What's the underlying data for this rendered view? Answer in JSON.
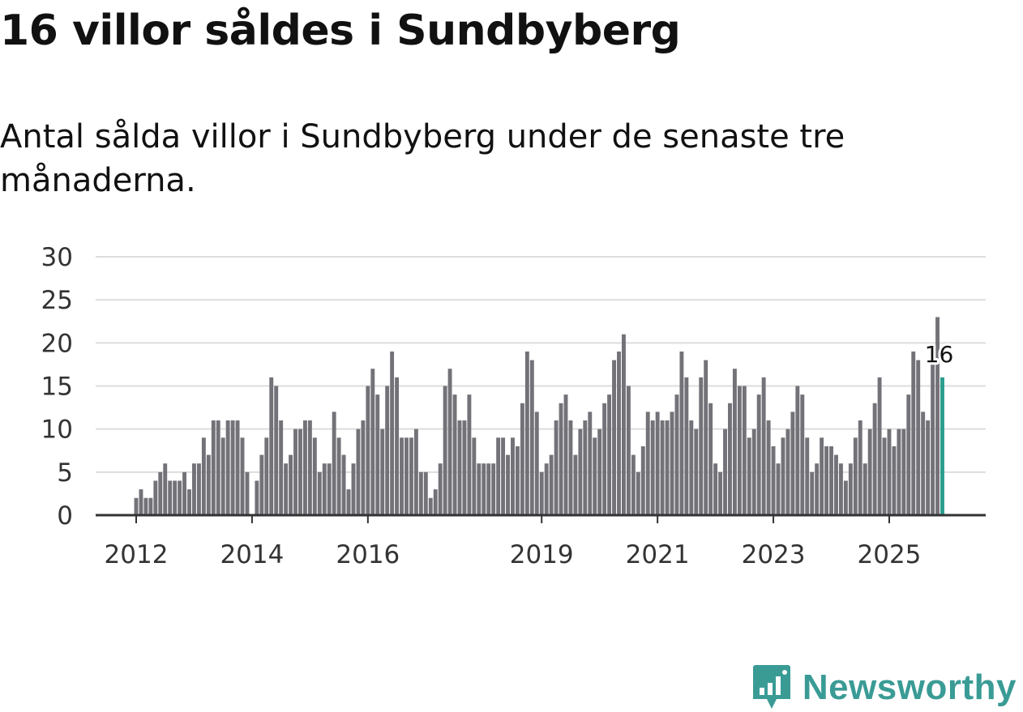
{
  "header": {
    "title": "16 villor såldes i Sundbyberg",
    "subtitle": "Antal sålda villor i Sundbyberg under de senaste tre månaderna."
  },
  "brand": {
    "name": "Newsworthy",
    "color": "#3a9b95",
    "icon": "bar-chart-badge-icon"
  },
  "colors": {
    "bar": "#737278",
    "highlight": "#2a9d8f",
    "grid": "#dddddd",
    "axis": "#333333"
  },
  "chart_data": {
    "type": "bar",
    "title": "16 villor såldes i Sundbyberg",
    "subtitle": "Antal sålda villor i Sundbyberg under de senaste tre månaderna.",
    "xlabel": "",
    "ylabel": "",
    "ylim": [
      0,
      30
    ],
    "yticks": [
      0,
      5,
      10,
      15,
      20,
      25,
      30
    ],
    "grid": true,
    "start": "2012-01",
    "x_tick_labels": [
      {
        "label": "2012",
        "month_index": 0
      },
      {
        "label": "2014",
        "month_index": 24
      },
      {
        "label": "2016",
        "month_index": 48
      },
      {
        "label": "2019",
        "month_index": 84
      },
      {
        "label": "2021",
        "month_index": 108
      },
      {
        "label": "2023",
        "month_index": 132
      },
      {
        "label": "2025",
        "month_index": 156
      }
    ],
    "values": [
      2,
      3,
      2,
      2,
      4,
      5,
      6,
      4,
      4,
      4,
      5,
      3,
      6,
      6,
      9,
      7,
      11,
      11,
      9,
      11,
      11,
      11,
      9,
      5,
      0,
      4,
      7,
      9,
      16,
      15,
      11,
      6,
      7,
      10,
      10,
      11,
      11,
      9,
      5,
      6,
      6,
      12,
      9,
      7,
      3,
      6,
      10,
      11,
      15,
      17,
      14,
      10,
      15,
      19,
      16,
      9,
      9,
      9,
      10,
      5,
      5,
      2,
      3,
      6,
      15,
      17,
      14,
      11,
      11,
      14,
      9,
      6,
      6,
      6,
      6,
      9,
      9,
      7,
      9,
      8,
      13,
      19,
      18,
      12,
      5,
      6,
      7,
      11,
      13,
      14,
      11,
      7,
      10,
      11,
      12,
      9,
      10,
      13,
      14,
      18,
      19,
      21,
      15,
      7,
      5,
      8,
      12,
      11,
      12,
      11,
      11,
      12,
      14,
      19,
      16,
      11,
      10,
      16,
      18,
      13,
      6,
      5,
      10,
      13,
      17,
      15,
      15,
      9,
      10,
      14,
      16,
      11,
      8,
      6,
      9,
      10,
      12,
      15,
      14,
      9,
      5,
      6,
      9,
      8,
      8,
      7,
      6,
      4,
      6,
      9,
      11,
      6,
      10,
      13,
      16,
      9,
      10,
      8,
      10,
      10,
      14,
      19,
      18,
      12,
      11,
      18,
      23,
      16
    ],
    "highlight": {
      "index": 167,
      "value": 16,
      "label": "16"
    }
  }
}
